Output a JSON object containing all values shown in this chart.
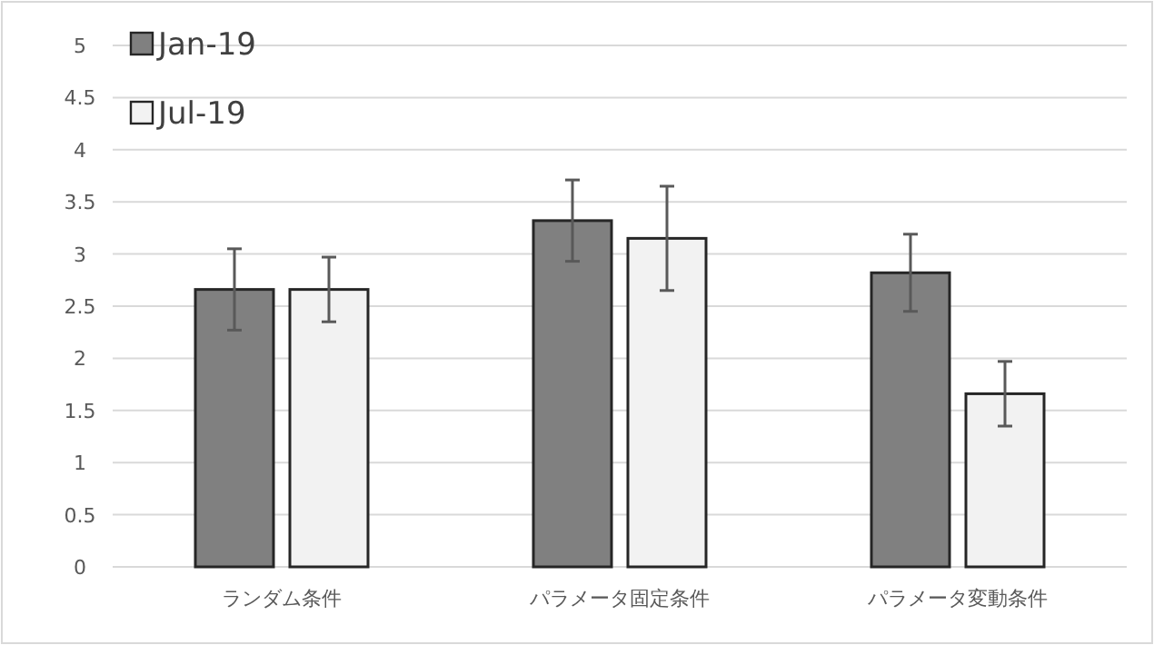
{
  "chart_data": {
    "type": "bar",
    "categories": [
      "ランダム条件",
      "パラメータ固定条件",
      "パラメータ変動条件"
    ],
    "series": [
      {
        "name": "Jan-19",
        "color": "#808080",
        "values": [
          2.66,
          3.32,
          2.82
        ],
        "errors": [
          0.39,
          0.39,
          0.37
        ]
      },
      {
        "name": "Jul-19",
        "color": "#f2f2f2",
        "values": [
          2.66,
          3.15,
          1.66
        ],
        "errors": [
          0.31,
          0.5,
          0.31
        ]
      }
    ],
    "ylim": [
      0,
      5
    ],
    "yticks": [
      0,
      0.5,
      1,
      1.5,
      2,
      2.5,
      3,
      3.5,
      4,
      4.5,
      5
    ],
    "grid": "y",
    "legend": "top left"
  }
}
